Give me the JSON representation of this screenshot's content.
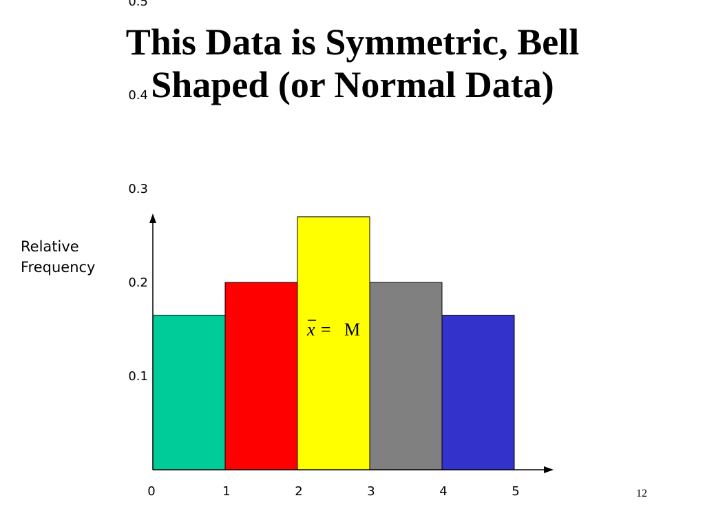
{
  "slide": {
    "title_line1": "This Data is Symmetric, Bell",
    "title_line2": "Shaped (or Normal Data)",
    "page_number": "12"
  },
  "chart_data": {
    "type": "bar",
    "ylabel_line1": "Relative",
    "ylabel_line2": "Frequency",
    "x_ticks": [
      "0",
      "1",
      "2",
      "3",
      "4",
      "5"
    ],
    "y_ticks": [
      "0.1",
      "0.2",
      "0.3",
      "0.4",
      "0.5"
    ],
    "xlim": [
      0,
      5
    ],
    "bins": [
      {
        "from": 0,
        "to": 1,
        "value": 0.165,
        "color": "#00CC99"
      },
      {
        "from": 1,
        "to": 2,
        "value": 0.2,
        "color": "#FF0000"
      },
      {
        "from": 2,
        "to": 3,
        "value": 0.27,
        "color": "#FFFF00"
      },
      {
        "from": 3,
        "to": 4,
        "value": 0.2,
        "color": "#808080"
      },
      {
        "from": 4,
        "to": 5,
        "value": 0.165,
        "color": "#3333CC"
      }
    ],
    "annotation": {
      "mean_symbol": "x",
      "equals": "=",
      "median_symbol": "M"
    },
    "grid": false
  }
}
